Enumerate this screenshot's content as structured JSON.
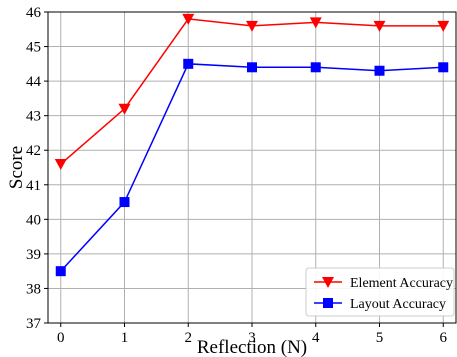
{
  "chart_data": {
    "type": "line",
    "title": "",
    "xlabel": "Reflection (N)",
    "ylabel": "Score",
    "x": [
      0,
      1,
      2,
      3,
      4,
      5,
      6
    ],
    "xlim": [
      -0.2,
      6.2
    ],
    "ylim": [
      37,
      46
    ],
    "xticks": [
      "0",
      "1",
      "2",
      "3",
      "4",
      "5",
      "6"
    ],
    "yticks": [
      "37",
      "38",
      "39",
      "40",
      "41",
      "42",
      "43",
      "44",
      "45",
      "46"
    ],
    "grid": true,
    "legend_position": "bottom-right",
    "series": [
      {
        "name": "Element Accuracy",
        "color": "#ff0000",
        "marker": "triangle-down",
        "values": [
          41.6,
          43.2,
          45.8,
          45.6,
          45.7,
          45.6,
          45.6
        ]
      },
      {
        "name": "Layout Accuracy",
        "color": "#0000ff",
        "marker": "square",
        "values": [
          38.5,
          40.5,
          44.5,
          44.4,
          44.4,
          44.3,
          44.4
        ]
      }
    ]
  }
}
